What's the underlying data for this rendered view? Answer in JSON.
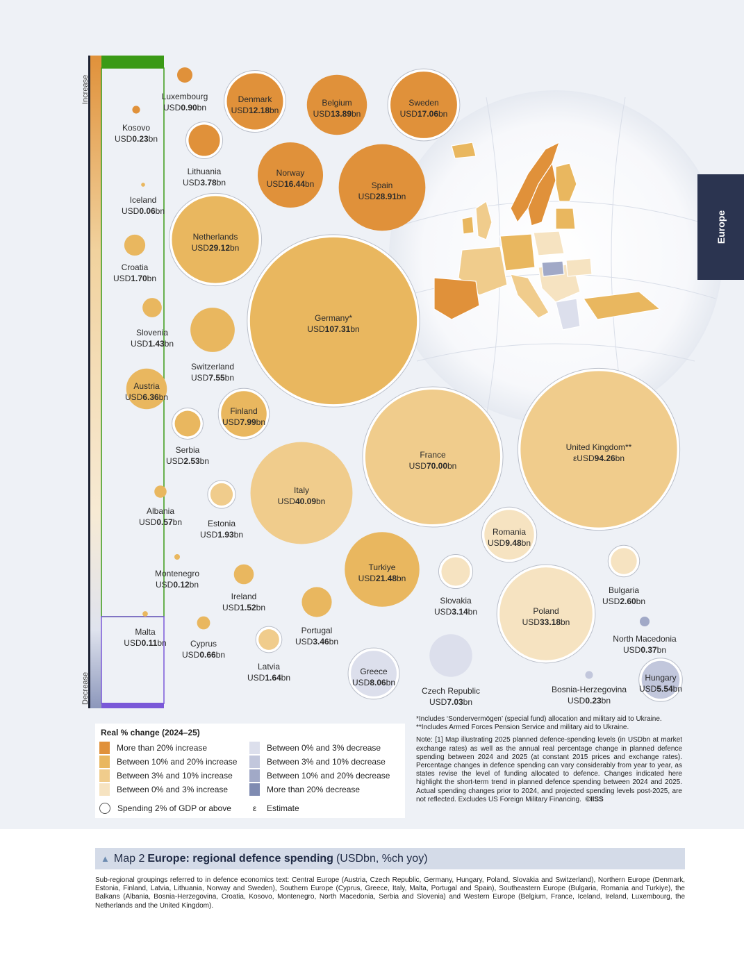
{
  "side_tab": {
    "label": "Europe"
  },
  "axis": {
    "increase_label": "Increase",
    "decrease_label": "Decrease"
  },
  "colors": {
    "inc_gt20": "#e0913a",
    "inc_10_20": "#e9b75f",
    "inc_3_10": "#f0cc8c",
    "inc_0_3": "#f6e3c1",
    "dec_0_3": "#dcdfec",
    "dec_3_10": "#c2c7dc",
    "dec_10_20": "#a1a9c7",
    "dec_gt20": "#7f8bb1"
  },
  "chart_data": {
    "type": "bubble",
    "value_unit": "USDbn",
    "series": [
      {
        "name": "Luxembourg",
        "prefix": "USD",
        "value": 0.9,
        "label": "0.90",
        "suffix": "bn",
        "category": "inc_gt20",
        "two_percent_gdp": false
      },
      {
        "name": "Kosovo",
        "prefix": "USD",
        "value": 0.23,
        "label": "0.23",
        "suffix": "bn",
        "category": "inc_gt20",
        "two_percent_gdp": false
      },
      {
        "name": "Iceland",
        "prefix": "USD",
        "value": 0.06,
        "label": "0.06",
        "suffix": "bn",
        "category": "inc_10_20",
        "two_percent_gdp": false
      },
      {
        "name": "Croatia",
        "prefix": "USD",
        "value": 1.7,
        "label": "1.70",
        "suffix": "bn",
        "category": "inc_10_20",
        "two_percent_gdp": false
      },
      {
        "name": "Slovenia",
        "prefix": "USD",
        "value": 1.43,
        "label": "1.43",
        "suffix": "bn",
        "category": "inc_10_20",
        "two_percent_gdp": false
      },
      {
        "name": "Austria",
        "prefix": "USD",
        "value": 6.36,
        "label": "6.36",
        "suffix": "bn",
        "category": "inc_10_20",
        "two_percent_gdp": false
      },
      {
        "name": "Albania",
        "prefix": "USD",
        "value": 0.57,
        "label": "0.57",
        "suffix": "bn",
        "category": "inc_10_20",
        "two_percent_gdp": false
      },
      {
        "name": "Montenegro",
        "prefix": "USD",
        "value": 0.12,
        "label": "0.12",
        "suffix": "bn",
        "category": "inc_10_20",
        "two_percent_gdp": false
      },
      {
        "name": "Malta",
        "prefix": "USD",
        "value": 0.11,
        "label": "0.11",
        "suffix": "bn",
        "category": "inc_10_20",
        "two_percent_gdp": false
      },
      {
        "name": "Denmark",
        "prefix": "USD",
        "value": 12.18,
        "label": "12.18",
        "suffix": "bn",
        "category": "inc_gt20",
        "two_percent_gdp": true
      },
      {
        "name": "Belgium",
        "prefix": "USD",
        "value": 13.89,
        "label": "13.89",
        "suffix": "bn",
        "category": "inc_gt20",
        "two_percent_gdp": false
      },
      {
        "name": "Sweden",
        "prefix": "USD",
        "value": 17.06,
        "label": "17.06",
        "suffix": "bn",
        "category": "inc_gt20",
        "two_percent_gdp": true
      },
      {
        "name": "Lithuania",
        "prefix": "USD",
        "value": 3.78,
        "label": "3.78",
        "suffix": "bn",
        "category": "inc_gt20",
        "two_percent_gdp": true
      },
      {
        "name": "Norway",
        "prefix": "USD",
        "value": 16.44,
        "label": "16.44",
        "suffix": "bn",
        "category": "inc_gt20",
        "two_percent_gdp": false
      },
      {
        "name": "Spain",
        "prefix": "USD",
        "value": 28.91,
        "label": "28.91",
        "suffix": "bn",
        "category": "inc_gt20",
        "two_percent_gdp": false
      },
      {
        "name": "Netherlands",
        "prefix": "USD",
        "value": 29.12,
        "label": "29.12",
        "suffix": "bn",
        "category": "inc_10_20",
        "two_percent_gdp": true
      },
      {
        "name": "Germany*",
        "prefix": "USD",
        "value": 107.31,
        "label": "107.31",
        "suffix": "bn",
        "category": "inc_10_20",
        "two_percent_gdp": true
      },
      {
        "name": "Switzerland",
        "prefix": "USD",
        "value": 7.55,
        "label": "7.55",
        "suffix": "bn",
        "category": "inc_10_20",
        "two_percent_gdp": false
      },
      {
        "name": "Finland",
        "prefix": "USD",
        "value": 7.99,
        "label": "7.99",
        "suffix": "bn",
        "category": "inc_10_20",
        "two_percent_gdp": true
      },
      {
        "name": "Serbia",
        "prefix": "USD",
        "value": 2.53,
        "label": "2.53",
        "suffix": "bn",
        "category": "inc_10_20",
        "two_percent_gdp": true
      },
      {
        "name": "Estonia",
        "prefix": "USD",
        "value": 1.93,
        "label": "1.93",
        "suffix": "bn",
        "category": "inc_3_10",
        "two_percent_gdp": true
      },
      {
        "name": "Italy",
        "prefix": "USD",
        "value": 40.09,
        "label": "40.09",
        "suffix": "bn",
        "category": "inc_3_10",
        "two_percent_gdp": false
      },
      {
        "name": "France",
        "prefix": "USD",
        "value": 70.0,
        "label": "70.00",
        "suffix": "bn",
        "category": "inc_3_10",
        "two_percent_gdp": true
      },
      {
        "name": "United Kingdom**",
        "prefix": "εUSD",
        "value": 94.26,
        "label": "94.26",
        "suffix": "bn",
        "category": "inc_3_10",
        "two_percent_gdp": true
      },
      {
        "name": "Romania",
        "prefix": "USD",
        "value": 9.48,
        "label": "9.48",
        "suffix": "bn",
        "category": "inc_0_3",
        "two_percent_gdp": true
      },
      {
        "name": "Ireland",
        "prefix": "USD",
        "value": 1.52,
        "label": "1.52",
        "suffix": "bn",
        "category": "inc_10_20",
        "two_percent_gdp": false
      },
      {
        "name": "Turkiye",
        "prefix": "USD",
        "value": 21.48,
        "label": "21.48",
        "suffix": "bn",
        "category": "inc_10_20",
        "two_percent_gdp": false
      },
      {
        "name": "Bulgaria",
        "prefix": "USD",
        "value": 2.6,
        "label": "2.60",
        "suffix": "bn",
        "category": "inc_0_3",
        "two_percent_gdp": true
      },
      {
        "name": "Portugal",
        "prefix": "USD",
        "value": 3.46,
        "label": "3.46",
        "suffix": "bn",
        "category": "inc_10_20",
        "two_percent_gdp": false
      },
      {
        "name": "Cyprus",
        "prefix": "USD",
        "value": 0.66,
        "label": "0.66",
        "suffix": "bn",
        "category": "inc_10_20",
        "two_percent_gdp": false
      },
      {
        "name": "Latvia",
        "prefix": "USD",
        "value": 1.64,
        "label": "1.64",
        "suffix": "bn",
        "category": "inc_3_10",
        "two_percent_gdp": true
      },
      {
        "name": "Slovakia",
        "prefix": "USD",
        "value": 3.14,
        "label": "3.14",
        "suffix": "bn",
        "category": "inc_0_3",
        "two_percent_gdp": true
      },
      {
        "name": "Poland",
        "prefix": "USD",
        "value": 33.18,
        "label": "33.18",
        "suffix": "bn",
        "category": "inc_0_3",
        "two_percent_gdp": true
      },
      {
        "name": "North Macedonia",
        "prefix": "USD",
        "value": 0.37,
        "label": "0.37",
        "suffix": "bn",
        "category": "dec_10_20",
        "two_percent_gdp": false
      },
      {
        "name": "Greece",
        "prefix": "USD",
        "value": 8.06,
        "label": "8.06",
        "suffix": "bn",
        "category": "dec_0_3",
        "two_percent_gdp": true
      },
      {
        "name": "Czech Republic",
        "prefix": "USD",
        "value": 7.03,
        "label": "7.03",
        "suffix": "bn",
        "category": "dec_0_3",
        "two_percent_gdp": false
      },
      {
        "name": "Bosnia-Herzegovina",
        "prefix": "USD",
        "value": 0.23,
        "label": "0.23",
        "suffix": "bn",
        "category": "dec_3_10",
        "two_percent_gdp": false
      },
      {
        "name": "Hungary",
        "prefix": "USD",
        "value": 5.54,
        "label": "5.54",
        "suffix": "bn",
        "category": "dec_3_10",
        "two_percent_gdp": true
      }
    ]
  },
  "legend": {
    "title": "Real % change (2024–25)",
    "increase_items": [
      {
        "label": "More than 20% increase",
        "color": "#e0913a"
      },
      {
        "label": "Between 10% and 20% increase",
        "color": "#e9b75f"
      },
      {
        "label": "Between 3% and 10% increase",
        "color": "#f0cc8c"
      },
      {
        "label": "Between 0% and 3% increase",
        "color": "#f6e3c1"
      }
    ],
    "decrease_items": [
      {
        "label": "Between 0% and 3% decrease",
        "color": "#dcdfec"
      },
      {
        "label": "Between 3% and 10% decrease",
        "color": "#c2c7dc"
      },
      {
        "label": "Between 10% and 20% decrease",
        "color": "#a1a9c7"
      },
      {
        "label": "More than 20% decrease",
        "color": "#7f8bb1"
      }
    ],
    "gdp_label": "Spending 2% of GDP or above",
    "estimate_symbol": "ε",
    "estimate_label": "Estimate"
  },
  "notes": {
    "footnote1": "*Includes ‘Sondervermögen’ (special fund) allocation and military aid to Ukraine.",
    "footnote2": "**Includes Armed Forces Pension Service and military aid to Ukraine.",
    "note": "Note: [1] Map illustrating 2025 planned defence-spending levels (in USDbn at market exchange rates) as well as the annual real percentage change in planned defence spending between 2024 and 2025 (at constant 2015 prices and exchange rates). Percentage changes in defence spending can vary considerably from year to year, as states revise the level of funding allocated to defence. Changes indicated here highlight the short-term trend in planned defence spending between 2024 and 2025. Actual spending changes prior to 2024, and projected spending levels post-2025, are not reflected. Excludes US Foreign Military Financing.",
    "copyright": "©IISS"
  },
  "caption": {
    "prefix": "Map 2",
    "title": "Europe: regional defence spending",
    "units": "(USDbn, %ch yoy)"
  },
  "subtext": "Sub-regional groupings referred to in defence economics text: Central Europe (Austria, Czech Republic, Germany, Hungary, Poland, Slovakia and Switzerland), Northern Europe (Denmark, Estonia, Finland, Latvia, Lithuania, Norway and Sweden), Southern Europe (Cyprus, Greece, Italy, Malta, Portugal and Spain), Southeastern Europe (Bulgaria, Romania and Turkiye), the Balkans (Albania, Bosnia-Herzegovina, Croatia, Kosovo, Montenegro, North Macedonia, Serbia and Slovenia) and Western Europe (Belgium, France, Iceland, Ireland, Luxembourg, the Netherlands and the United Kingdom)."
}
